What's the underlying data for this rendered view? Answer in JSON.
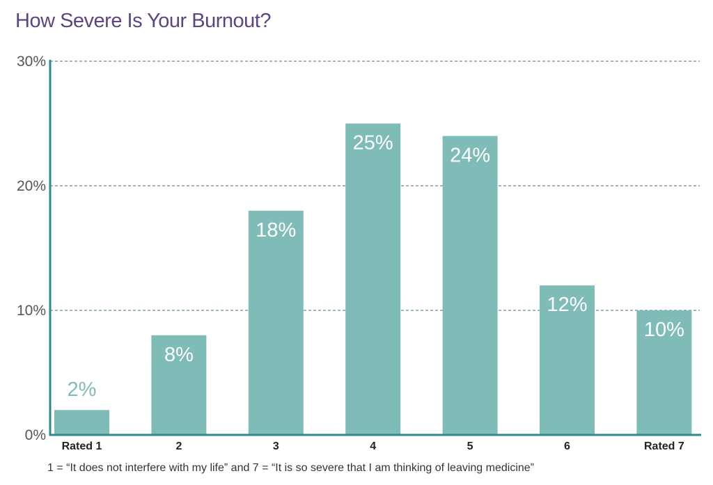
{
  "colors": {
    "title": "#5d4584",
    "bar": "#80bcb7",
    "axis": "#2e8a8e",
    "grid": "#3e6c8a",
    "label_on_bar": "#ffffff",
    "label_above_bar": "#80bcb7"
  },
  "chart_data": {
    "type": "bar",
    "title": "How Severe Is Your Burnout?",
    "categories": [
      "Rated  1",
      "2",
      "3",
      "4",
      "5",
      "6",
      "Rated 7"
    ],
    "values": [
      2,
      8,
      18,
      25,
      24,
      12,
      10
    ],
    "data_labels": [
      "2%",
      "8%",
      "18%",
      "25%",
      "24%",
      "12%",
      "10%"
    ],
    "y_ticks": [
      0,
      10,
      20,
      30
    ],
    "y_tick_labels": [
      "0%",
      "10%",
      "20%",
      "30%"
    ],
    "ylim": [
      0,
      30
    ],
    "grid": true,
    "legend": "none",
    "footnote": "1 = “It does not interfere with my life” and 7 = “It is so severe that I am thinking of leaving medicine”"
  }
}
